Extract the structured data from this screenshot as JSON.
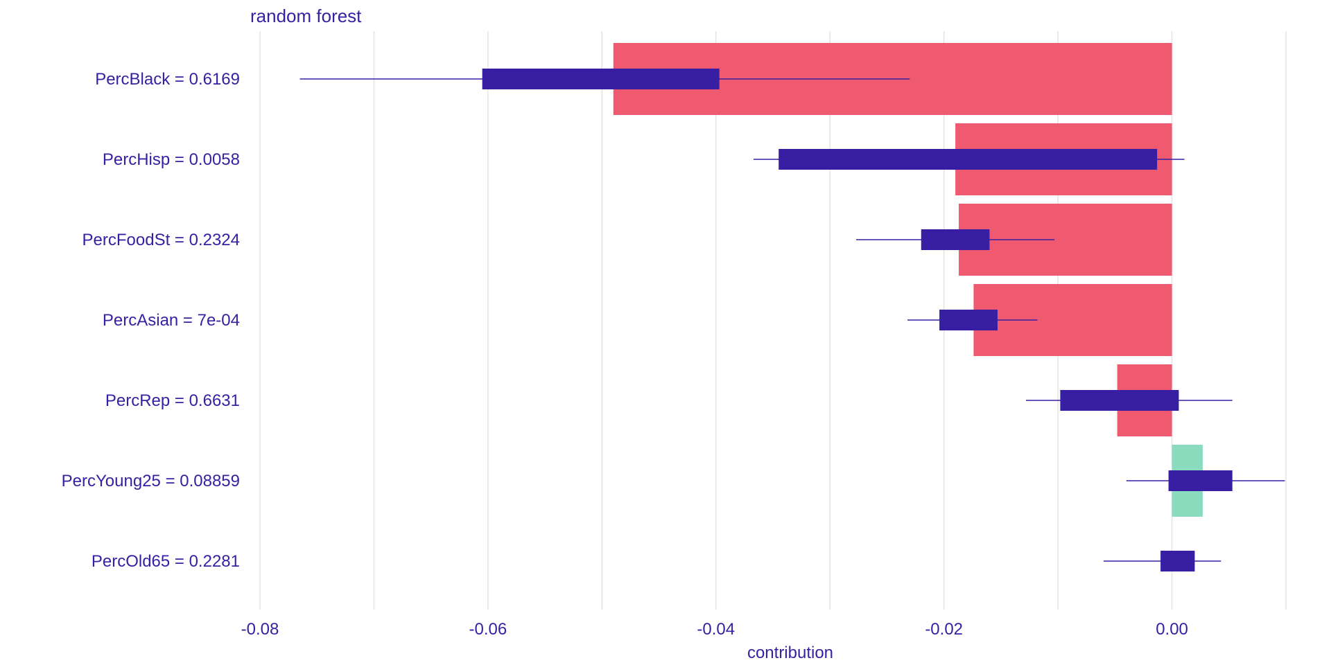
{
  "chart_data": {
    "type": "bar",
    "title": "random forest",
    "xlabel": "contribution",
    "ylabel": "",
    "xlim": [
      -0.08,
      0.01
    ],
    "x_ticks": [
      -0.08,
      -0.06,
      -0.04,
      -0.02,
      0.0
    ],
    "x_tick_labels": [
      "-0.08",
      "-0.06",
      "-0.04",
      "-0.02",
      "0.00"
    ],
    "gridlines": [
      -0.08,
      -0.07,
      -0.06,
      -0.05,
      -0.04,
      -0.03,
      -0.02,
      -0.01,
      0.0,
      0.01
    ],
    "grid": true,
    "orientation": "horizontal",
    "categories": [
      "PercBlack = 0.6169",
      "PercHisp = 0.0058",
      "PercFoodSt = 0.2324",
      "PercAsian = 7e-04",
      "PercRep = 0.6631",
      "PercYoung25 = 0.08859",
      "PercOld65 = 0.2281"
    ],
    "values": [
      -0.049,
      -0.019,
      -0.0187,
      -0.0174,
      -0.0048,
      0.0027,
      0.0
    ],
    "boxplots": [
      {
        "min": -0.0765,
        "q1": -0.0605,
        "q3": -0.0397,
        "max": -0.023
      },
      {
        "min": -0.0367,
        "q1": -0.0345,
        "q3": -0.0013,
        "max": 0.0011
      },
      {
        "min": -0.0277,
        "q1": -0.022,
        "q3": -0.016,
        "max": -0.0103
      },
      {
        "min": -0.0232,
        "q1": -0.0204,
        "q3": -0.0153,
        "max": -0.0118
      },
      {
        "min": -0.0128,
        "q1": -0.0098,
        "q3": 0.0006,
        "max": 0.0053
      },
      {
        "min": -0.004,
        "q1": -0.0003,
        "q3": 0.0053,
        "max": 0.0099
      },
      {
        "min": -0.006,
        "q1": -0.001,
        "q3": 0.002,
        "max": 0.0043
      }
    ],
    "colors": {
      "negative": "#f05a71",
      "positive": "#8bdcbe",
      "box": "#371ea3",
      "text": "#371ea3",
      "grid": "#e0e0e0"
    }
  }
}
